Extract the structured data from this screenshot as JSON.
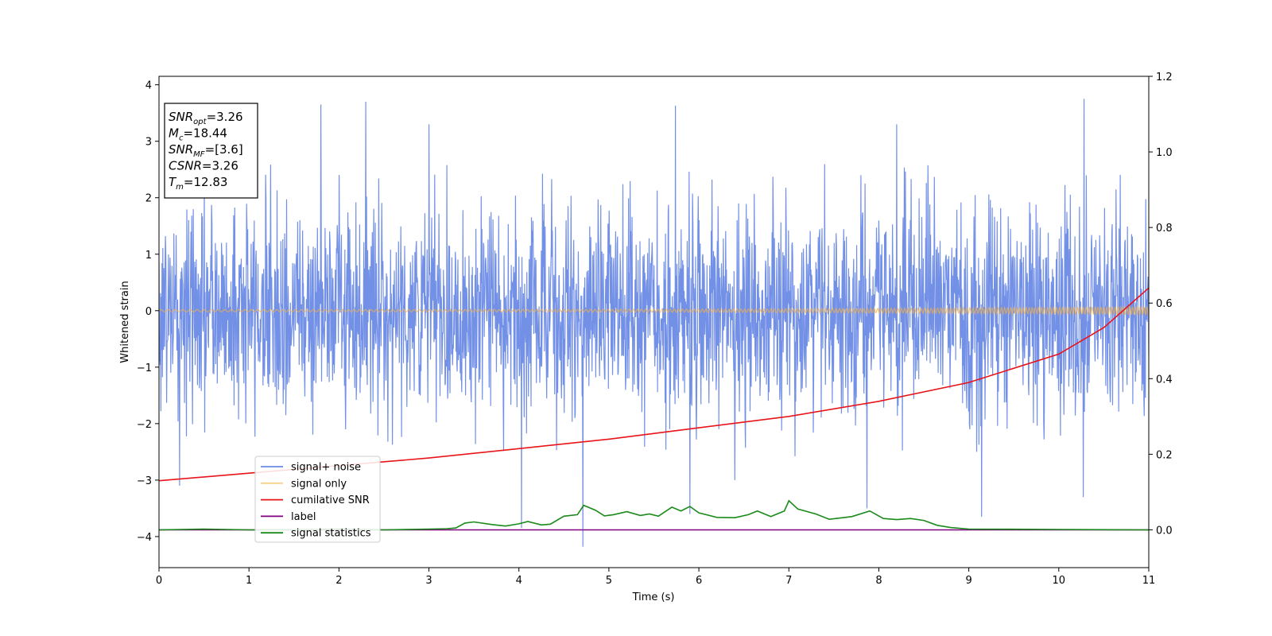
{
  "chart_data": {
    "type": "line",
    "xlabel": "Time (s)",
    "ylabel": "Whitened strain",
    "xlim": [
      0,
      11
    ],
    "ylim": [
      -4.55,
      4.15
    ],
    "y2lim": [
      -0.1,
      1.2
    ],
    "x_ticks": [
      0,
      1,
      2,
      3,
      4,
      5,
      6,
      7,
      8,
      9,
      10,
      11
    ],
    "y_ticks": [
      -4,
      -3,
      -2,
      -1,
      0,
      1,
      2,
      3,
      4
    ],
    "y2_ticks": [
      0.0,
      0.2,
      0.4,
      0.6,
      0.8,
      1.0,
      1.2
    ],
    "x_tick_labels": [
      "0",
      "1",
      "2",
      "3",
      "4",
      "5",
      "6",
      "7",
      "8",
      "9",
      "10",
      "11"
    ],
    "y_tick_labels": [
      "−4",
      "−3",
      "−2",
      "−1",
      "0",
      "1",
      "2",
      "3",
      "4"
    ],
    "y2_tick_labels": [
      "0.0",
      "0.2",
      "0.4",
      "0.6",
      "0.8",
      "1.0",
      "1.2"
    ],
    "grid": false,
    "legend_position": "lower-left",
    "annotation": {
      "lines": [
        {
          "main": "SNR",
          "sub": "opt",
          "rest": "=3.26"
        },
        {
          "main": "M",
          "sub": "c",
          "rest": "=18.44"
        },
        {
          "main": "SNR",
          "sub": "MF",
          "rest": "=[3.6]"
        },
        {
          "main": "CSNR",
          "sub": "",
          "rest": "=3.26"
        },
        {
          "main": "T",
          "sub": "m",
          "rest": "=12.83"
        }
      ]
    },
    "series": [
      {
        "name": "signal+ noise",
        "color": "#6b8ae6",
        "axis": "left",
        "kind": "noise",
        "note_band": "dense whitened noise, roughly within ±2.2 with spikes to about ±3.7",
        "peaks": [
          {
            "x": 1.8,
            "y": 3.65
          },
          {
            "x": 2.3,
            "y": 3.7
          },
          {
            "x": 5.74,
            "y": 3.63
          },
          {
            "x": 10.28,
            "y": 3.75
          },
          {
            "x": 4.71,
            "y": -4.18
          },
          {
            "x": 9.14,
            "y": -3.65
          },
          {
            "x": 4.03,
            "y": -3.85
          },
          {
            "x": 7.87,
            "y": -3.5
          },
          {
            "x": 5.9,
            "y": -3.6
          },
          {
            "x": 0.23,
            "y": -3.1
          },
          {
            "x": 3.0,
            "y": 3.3
          },
          {
            "x": 8.2,
            "y": 3.3
          },
          {
            "x": 6.4,
            "y": -3.0
          },
          {
            "x": 10.27,
            "y": -3.3
          }
        ]
      },
      {
        "name": "signal only",
        "color": "#f5b041",
        "axis": "left",
        "kind": "chirp",
        "note": "chirp near 0 with amplitude growing from about 0.02 to 0.08"
      },
      {
        "name": "cumilative SNR",
        "color": "#e8141a",
        "axis": "right",
        "x": [
          0,
          1,
          2,
          3,
          4,
          5,
          6,
          7,
          8,
          9,
          10,
          10.5,
          11
        ],
        "y": [
          0.13,
          0.15,
          0.17,
          0.19,
          0.215,
          0.24,
          0.27,
          0.3,
          0.34,
          0.39,
          0.465,
          0.535,
          0.64
        ]
      },
      {
        "name": "label",
        "color": "#800080",
        "axis": "right",
        "x": [
          0,
          11
        ],
        "y": [
          0.0,
          0.0
        ]
      },
      {
        "name": "signal statistics",
        "color": "#1a8a1a",
        "axis": "right",
        "x": [
          0,
          0.5,
          1,
          1.5,
          2,
          2.5,
          3,
          3.2,
          3.3,
          3.4,
          3.5,
          3.7,
          3.85,
          4.0,
          4.1,
          4.25,
          4.35,
          4.5,
          4.65,
          4.72,
          4.85,
          4.95,
          5.05,
          5.2,
          5.35,
          5.45,
          5.55,
          5.7,
          5.8,
          5.9,
          6.0,
          6.2,
          6.4,
          6.55,
          6.65,
          6.8,
          6.95,
          7.0,
          7.1,
          7.3,
          7.45,
          7.7,
          7.9,
          8.05,
          8.2,
          8.35,
          8.5,
          8.65,
          8.8,
          9.0,
          10.0,
          11.0
        ],
        "y": [
          0.0,
          0.002,
          0.0,
          0.0,
          0.002,
          0.0,
          0.002,
          0.003,
          0.005,
          0.018,
          0.021,
          0.014,
          0.01,
          0.016,
          0.022,
          0.013,
          0.015,
          0.036,
          0.04,
          0.065,
          0.052,
          0.037,
          0.04,
          0.048,
          0.038,
          0.042,
          0.036,
          0.06,
          0.05,
          0.062,
          0.045,
          0.033,
          0.032,
          0.04,
          0.05,
          0.035,
          0.05,
          0.077,
          0.055,
          0.042,
          0.028,
          0.035,
          0.05,
          0.03,
          0.027,
          0.03,
          0.025,
          0.012,
          0.006,
          0.002,
          0.001,
          0.0
        ]
      }
    ]
  }
}
